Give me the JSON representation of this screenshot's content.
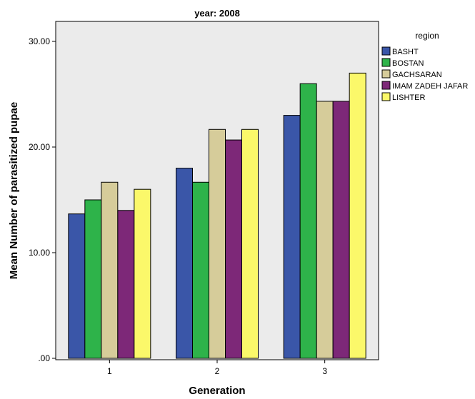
{
  "chart_data": {
    "type": "bar",
    "title": "year: 2008",
    "xlabel": "Generation",
    "ylabel": "Mean Number of parasitized pupae",
    "categories": [
      "1",
      "2",
      "3"
    ],
    "ylim": [
      0,
      30
    ],
    "yticks": [
      0,
      10,
      20,
      30
    ],
    "ytick_labels": [
      ".00",
      "10.00",
      "20.00",
      "30.00"
    ],
    "grid": false,
    "plot_background": "#ebebeb",
    "legend": {
      "title": "region",
      "placement": "right"
    },
    "series": [
      {
        "name": "BASHT",
        "color": "#3a56a8",
        "values": [
          13.67,
          18.0,
          23.0
        ]
      },
      {
        "name": "BOSTAN",
        "color": "#2eb34a",
        "values": [
          15.0,
          16.67,
          26.0
        ]
      },
      {
        "name": "GACHSARAN",
        "color": "#d6cc9a",
        "values": [
          16.67,
          21.67,
          24.33
        ]
      },
      {
        "name": "IMAM ZADEH JAFAR",
        "color": "#7d2878",
        "values": [
          14.0,
          20.67,
          24.33
        ]
      },
      {
        "name": "LISHTER",
        "color": "#fbf86a",
        "values": [
          16.0,
          21.67,
          27.0
        ]
      }
    ]
  }
}
